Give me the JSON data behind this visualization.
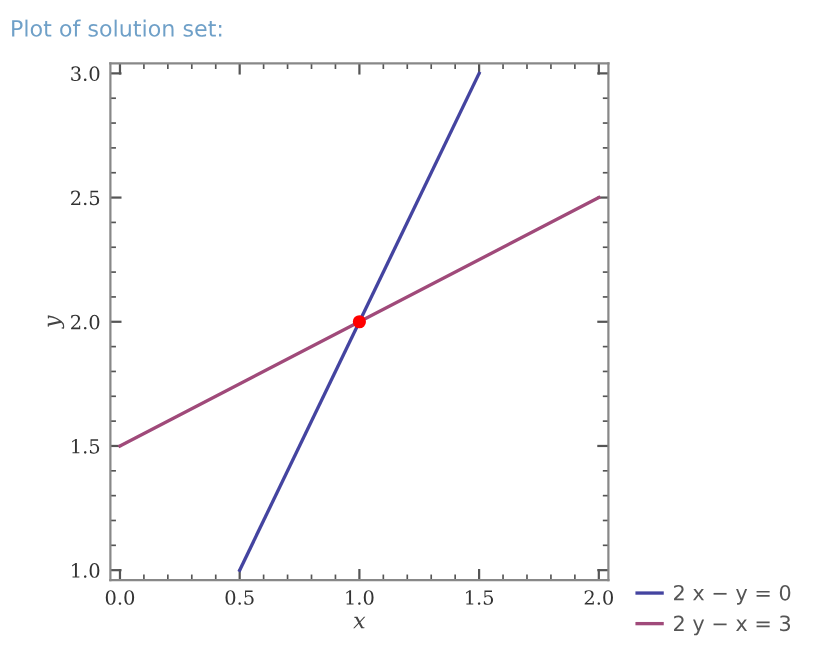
{
  "chart_data": {
    "type": "line",
    "title": "Plot of solution set:",
    "xlabel": "x",
    "ylabel": "y",
    "xlim": [
      -0.04,
      2.04
    ],
    "ylim": [
      0.96,
      3.04
    ],
    "xticks": [
      {
        "value": 0,
        "label": "0.0"
      },
      {
        "value": 0.5,
        "label": "0.5"
      },
      {
        "value": 1,
        "label": "1.0"
      },
      {
        "value": 1.5,
        "label": "1.5"
      },
      {
        "value": 2,
        "label": "2.0"
      }
    ],
    "yticks": [
      {
        "value": 1,
        "label": "1.0"
      },
      {
        "value": 1.5,
        "label": "1.5"
      },
      {
        "value": 2,
        "label": "2.0"
      },
      {
        "value": 2.5,
        "label": "2.5"
      },
      {
        "value": 3,
        "label": "3.0"
      }
    ],
    "series": [
      {
        "name": "2 x − y = 0",
        "color": "#4444a0",
        "x": [
          0.5,
          1.5
        ],
        "values": [
          1,
          3
        ]
      },
      {
        "name": "2 y − x = 3",
        "color": "#a04a7a",
        "x": [
          0,
          2
        ],
        "values": [
          1.5,
          2.5
        ]
      },
      {
        "type": "scatter",
        "color": "#ff0000",
        "x": [
          1
        ],
        "values": [
          2
        ],
        "marker": "circle"
      }
    ],
    "legend": "bottom right",
    "grid": false,
    "marker": "none",
    "line_style": "solid"
  }
}
